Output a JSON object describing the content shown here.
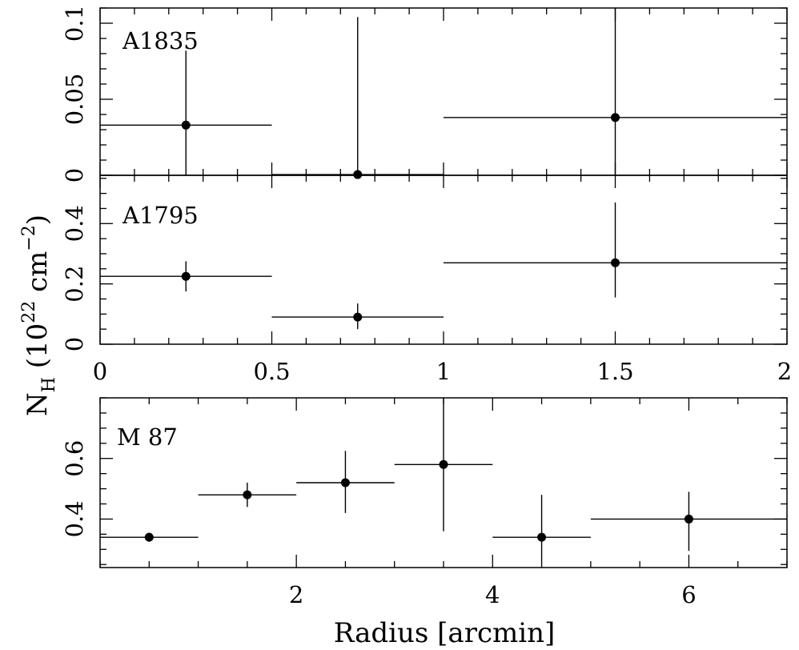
{
  "chart_data": [
    {
      "type": "scatter",
      "panel": "A1835",
      "label": "A1835",
      "xlim": [
        0,
        2
      ],
      "ylim": [
        0,
        0.11
      ],
      "x_ticks": [
        "0",
        "0.5",
        "1",
        "1.5",
        "2"
      ],
      "x_tick_values": [
        0,
        0.5,
        1,
        1.5,
        2
      ],
      "y_ticks": [
        "0",
        "0.05",
        "0.1"
      ],
      "y_tick_values": [
        0,
        0.05,
        0.1
      ],
      "points": [
        {
          "x": 0.25,
          "xerr": 0.25,
          "y": 0.033,
          "ylo": 0.0,
          "yhi": 0.082
        },
        {
          "x": 0.75,
          "xerr": 0.25,
          "y": 0.0005,
          "ylo": 0.0,
          "yhi": 0.104
        },
        {
          "x": 1.5,
          "xerr": 0.5,
          "y": 0.038,
          "ylo": 0.0,
          "yhi": 0.11
        }
      ]
    },
    {
      "type": "scatter",
      "panel": "A1795",
      "label": "A1795",
      "xlim": [
        0,
        2
      ],
      "ylim": [
        0,
        0.56
      ],
      "x_ticks": [
        "0",
        "0.5",
        "1",
        "1.5",
        "2"
      ],
      "x_tick_values": [
        0,
        0.5,
        1,
        1.5,
        2
      ],
      "y_ticks": [
        "0",
        "0.2",
        "0.4"
      ],
      "y_tick_values": [
        0,
        0.2,
        0.4
      ],
      "points": [
        {
          "x": 0.25,
          "xerr": 0.25,
          "y": 0.225,
          "ylo": 0.175,
          "yhi": 0.275
        },
        {
          "x": 0.75,
          "xerr": 0.25,
          "y": 0.09,
          "ylo": 0.05,
          "yhi": 0.135
        },
        {
          "x": 1.5,
          "xerr": 0.5,
          "y": 0.27,
          "ylo": 0.155,
          "yhi": 0.47
        }
      ]
    },
    {
      "type": "scatter",
      "panel": "M87",
      "label": "M 87",
      "xlim": [
        0,
        7
      ],
      "ylim": [
        0.24,
        0.8
      ],
      "x_ticks": [
        "2",
        "4",
        "6"
      ],
      "x_tick_values": [
        2,
        4,
        6
      ],
      "y_ticks": [
        "0.4",
        "0.6"
      ],
      "y_tick_values": [
        0.4,
        0.6
      ],
      "points": [
        {
          "x": 0.5,
          "xlo": 0.0,
          "xhi": 1.0,
          "y": 0.34,
          "ylo": 0.325,
          "yhi": 0.355
        },
        {
          "x": 1.5,
          "xlo": 1.0,
          "xhi": 2.0,
          "y": 0.48,
          "ylo": 0.44,
          "yhi": 0.52
        },
        {
          "x": 2.5,
          "xlo": 2.0,
          "xhi": 3.0,
          "y": 0.52,
          "ylo": 0.42,
          "yhi": 0.625
        },
        {
          "x": 3.5,
          "xlo": 3.0,
          "xhi": 4.0,
          "y": 0.58,
          "ylo": 0.36,
          "yhi": 0.8
        },
        {
          "x": 4.5,
          "xlo": 4.0,
          "xhi": 5.0,
          "y": 0.34,
          "ylo": 0.26,
          "yhi": 0.48
        },
        {
          "x": 6.0,
          "xlo": 5.0,
          "xhi": 7.0,
          "y": 0.4,
          "ylo": 0.295,
          "yhi": 0.49
        }
      ]
    }
  ],
  "axes": {
    "ylabel_main": "N",
    "ylabel_sub": "H",
    "ylabel_open": " (10",
    "ylabel_exp": "22",
    "ylabel_unit": " cm",
    "ylabel_unit_exp": "−2",
    "ylabel_close": ")",
    "xlabel": "Radius [arcmin]"
  },
  "style": {
    "ink": "#000000",
    "background": "#ffffff"
  }
}
